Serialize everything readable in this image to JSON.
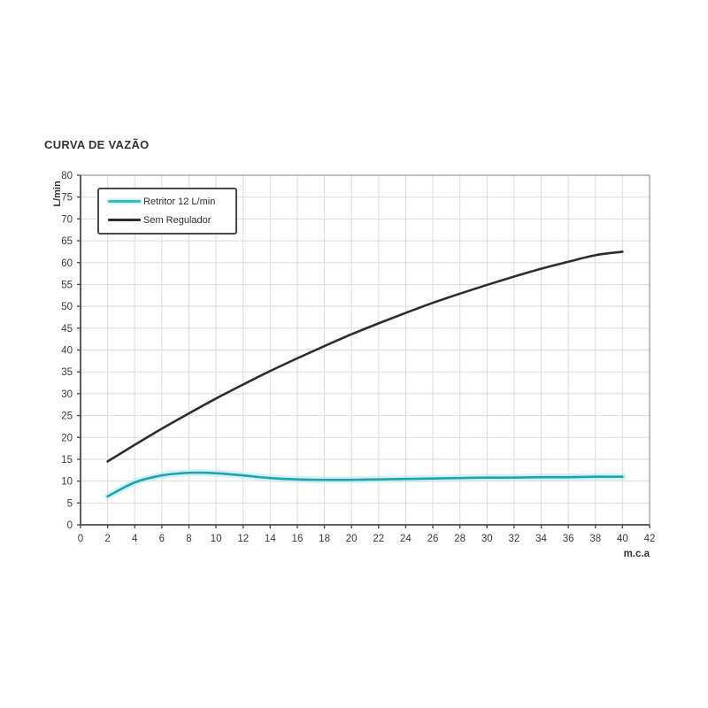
{
  "figure": {
    "title": "CURVA DE VAZÃO",
    "x_axis_unit": "m.c.a",
    "y_axis_unit": "L/min"
  },
  "legend": {
    "items": [
      {
        "label": "Retritor 12 L/min",
        "color": "#3bbcc2"
      },
      {
        "label": "Sem Regulador",
        "color": "#2d2d2d"
      }
    ]
  },
  "colors": {
    "cyan_core": "#1fa3ac",
    "cyan_glow": "#aeeaf0",
    "black_line": "#2d2d2d",
    "grid": "#dbdbdb",
    "frame": "#9b9b9b",
    "axis": "#4c4c4c",
    "tick_text": "#3a3a3a"
  },
  "chart_data": {
    "type": "line",
    "title": "CURVA DE VAZÃO",
    "xlabel": "m.c.a",
    "ylabel": "L/min",
    "xlim": [
      0,
      42
    ],
    "ylim": [
      0,
      80
    ],
    "xtick_step": 2,
    "ytick_step": 5,
    "grid": true,
    "legend_position": "upper-left",
    "x": [
      2,
      4,
      6,
      8,
      10,
      12,
      14,
      16,
      18,
      20,
      22,
      24,
      26,
      28,
      30,
      32,
      34,
      36,
      38,
      40
    ],
    "series": [
      {
        "name": "Retritor 12 L/min",
        "color": "#1fa3ac",
        "glow_color": "#aeeaf0",
        "values": [
          6.5,
          9.7,
          11.3,
          11.9,
          11.8,
          11.3,
          10.7,
          10.4,
          10.3,
          10.3,
          10.4,
          10.5,
          10.6,
          10.7,
          10.8,
          10.8,
          10.9,
          10.9,
          11.0,
          11.0
        ]
      },
      {
        "name": "Sem Regulador",
        "color": "#2d2d2d",
        "values": [
          14.5,
          18.3,
          22.0,
          25.5,
          28.9,
          32.1,
          35.2,
          38.1,
          40.9,
          43.6,
          46.1,
          48.5,
          50.8,
          52.9,
          54.9,
          56.8,
          58.6,
          60.2,
          61.7,
          62.5
        ]
      }
    ]
  }
}
